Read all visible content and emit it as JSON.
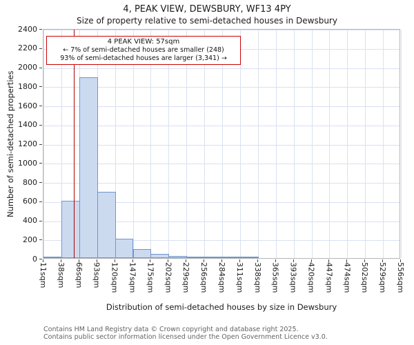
{
  "title": "4, PEAK VIEW, DEWSBURY, WF13 4PY",
  "subtitle": "Size of property relative to semi-detached houses in Dewsbury",
  "annotation": {
    "line1": "4 PEAK VIEW: 57sqm",
    "line2": "← 7% of semi-detached houses are smaller (248)",
    "line3": "93% of semi-detached houses are larger (3,341) →"
  },
  "footer": {
    "line1": "Contains HM Land Registry data © Crown copyright and database right 2025.",
    "line2": "Contains public sector information licensed under the Open Government Licence v3.0."
  },
  "chart_data": {
    "type": "bar",
    "title": "4, PEAK VIEW, DEWSBURY, WF13 4PY",
    "subtitle": "Size of property relative to semi-detached houses in Dewsbury",
    "xlabel": "Distribution of semi-detached houses by size in Dewsbury",
    "ylabel": "Number of semi-detached properties",
    "xlim_sqm": [
      11,
      556
    ],
    "ylim": [
      0,
      2400
    ],
    "ytick_step": 200,
    "grid": true,
    "bin_edges_sqm": [
      11,
      38,
      66,
      93,
      120,
      147,
      175,
      202,
      229,
      256,
      284,
      311,
      338,
      365,
      393,
      420,
      447,
      474,
      502,
      529,
      556
    ],
    "tick_labels": [
      "11sqm",
      "38sqm",
      "66sqm",
      "93sqm",
      "120sqm",
      "147sqm",
      "175sqm",
      "202sqm",
      "229sqm",
      "256sqm",
      "284sqm",
      "311sqm",
      "338sqm",
      "365sqm",
      "393sqm",
      "420sqm",
      "447sqm",
      "474sqm",
      "502sqm",
      "529sqm",
      "556sqm"
    ],
    "values": [
      15,
      600,
      1890,
      690,
      205,
      95,
      45,
      25,
      12,
      8,
      4,
      2,
      0,
      0,
      0,
      0,
      0,
      0,
      0,
      0
    ],
    "marker": {
      "label": "4 PEAK VIEW",
      "value_sqm": 57
    },
    "smaller": {
      "percent": 7,
      "count": 248
    },
    "larger": {
      "percent": 93,
      "count": 3341
    },
    "colors": {
      "bar_fill": "#ccdaf0",
      "bar_border": "#6e96cf",
      "marker_line": "#aa0000",
      "grid_line": "#d9e0f0",
      "annotation_border": "#cc0000"
    }
  }
}
